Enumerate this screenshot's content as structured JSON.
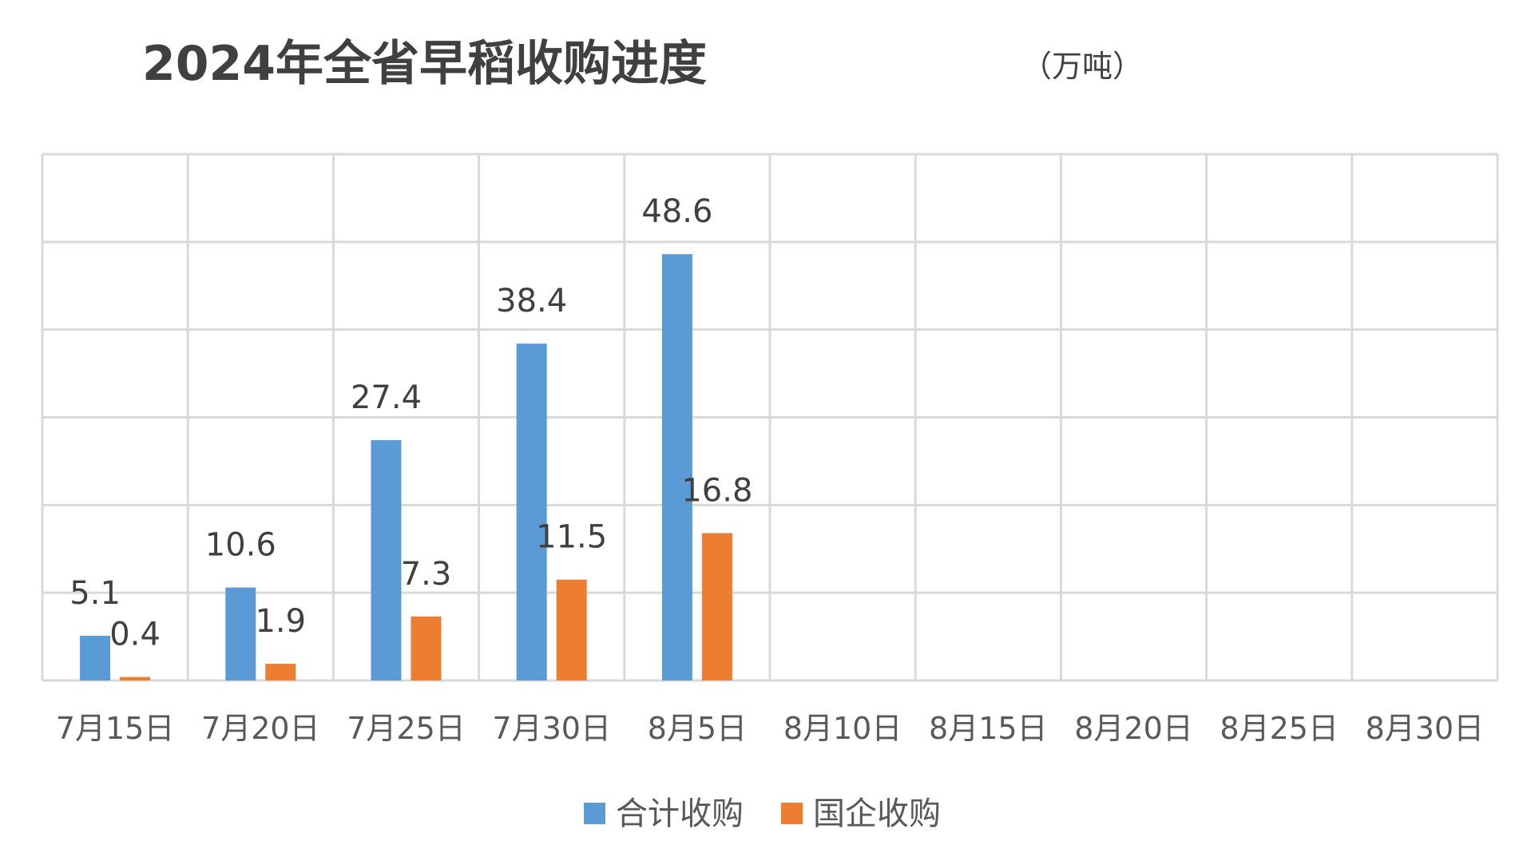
{
  "chart_data": {
    "type": "bar",
    "title": "2024年全省早稻收购进度",
    "subtitle": "（万吨）",
    "xlabel": "",
    "ylabel": "",
    "ylim": [
      0,
      60
    ],
    "grid": true,
    "legend_position": "bottom",
    "categories": [
      "7月15日",
      "7月20日",
      "7月25日",
      "7月30日",
      "8月5日",
      "8月10日",
      "8月15日",
      "8月20日",
      "8月25日",
      "8月30日"
    ],
    "series": [
      {
        "name": "合计收购",
        "color": "#5B9BD5",
        "values": [
          5.1,
          10.6,
          27.4,
          38.4,
          48.6,
          null,
          null,
          null,
          null,
          null
        ]
      },
      {
        "name": "国企收购",
        "color": "#ED7D31",
        "values": [
          0.4,
          1.9,
          7.3,
          11.5,
          16.8,
          null,
          null,
          null,
          null,
          null
        ]
      }
    ]
  }
}
